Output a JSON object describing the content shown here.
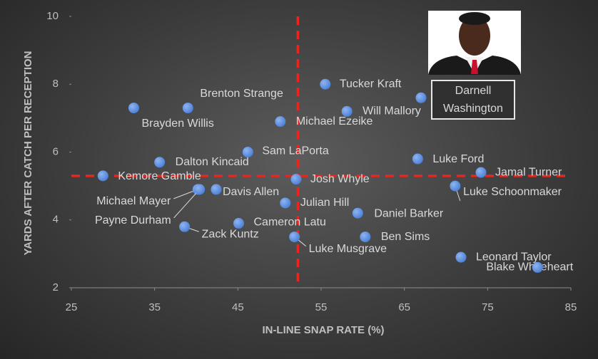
{
  "chart_data": {
    "type": "scatter",
    "xlabel": "IN-LINE SNAP RATE (%)",
    "ylabel": "YARDS AFTER CATCH PER RECEPTION",
    "labels": [
      "Kemore Gamble",
      "Brayden Willis",
      "Brenton Strange",
      "Dalton Kincaid",
      "Michael Mayer",
      "Davis Allen",
      "Payne Durham",
      "Zack Kuntz",
      "Cameron Latu",
      "Sam LaPorta",
      "Michael Ezeike",
      "Julian Hill",
      "Luke Musgrave",
      "Josh Whyle",
      "Tucker Kraft",
      "Will Mallory",
      "Daniel Barker",
      "Ben Sims",
      "Luke Ford",
      "Darnell Washington",
      "Jamal Turner",
      "Luke Schoonmaker",
      "Leonard Taylor",
      "Blake Whiteheart"
    ],
    "x": [
      28.8,
      32.5,
      39.0,
      35.6,
      40.2,
      42.4,
      40.4,
      38.6,
      45.1,
      46.2,
      50.1,
      50.7,
      51.8,
      52.0,
      55.5,
      58.1,
      59.4,
      60.3,
      66.6,
      67.0,
      74.2,
      71.1,
      71.8,
      81.0
    ],
    "values": [
      5.3,
      7.3,
      7.3,
      5.7,
      4.9,
      4.9,
      4.9,
      3.8,
      3.9,
      6.0,
      6.9,
      4.5,
      3.5,
      5.2,
      8.0,
      7.2,
      4.2,
      3.5,
      5.8,
      7.6,
      5.4,
      5.0,
      2.9,
      2.6
    ],
    "color": "#4a7fd6",
    "xlim": [
      25,
      85
    ],
    "xticks": [
      25,
      35,
      45,
      55,
      65,
      75,
      85
    ],
    "ylim": [
      2,
      10
    ],
    "yticks": [
      2,
      4,
      6,
      8,
      10
    ],
    "reference_x": 52.2,
    "reference_y": 5.3,
    "reference_color": "#e8251f"
  }
}
